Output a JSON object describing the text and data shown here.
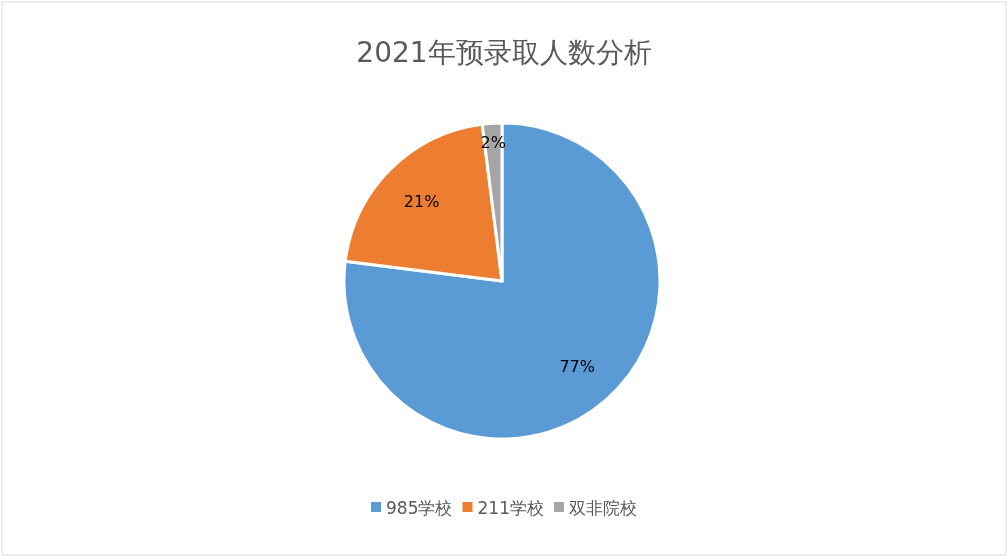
{
  "chart_data": {
    "type": "pie",
    "title": "2021年预录取人数分析",
    "categories": [
      "985学校",
      "211学校",
      "双非院校"
    ],
    "values": [
      77,
      21,
      2
    ],
    "colors": [
      "#5b9bd5",
      "#ed7d31",
      "#a5a5a5"
    ],
    "value_labels": [
      "77%",
      "21%",
      "2%"
    ],
    "legend": "bottom"
  }
}
